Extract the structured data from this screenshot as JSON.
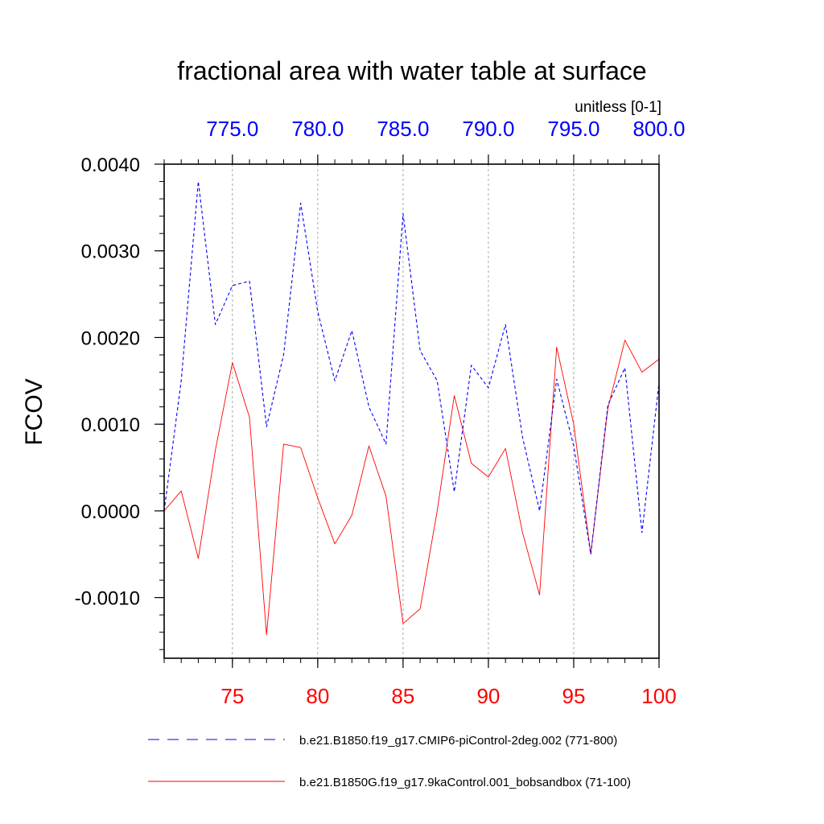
{
  "chart_data": {
    "type": "line",
    "title": "fractional area with water table at surface",
    "units_label": "unitless [0-1]",
    "ylabel": "FCOV",
    "ylim": [
      -0.0017,
      0.004
    ],
    "yticks": [
      -0.001,
      0.0,
      0.001,
      0.002,
      0.003,
      0.004
    ],
    "ytick_labels": [
      "-0.0010",
      "0.0000",
      "0.0010",
      "0.0020",
      "0.0030",
      "0.0040"
    ],
    "bottom_axis": {
      "xlim": [
        71,
        100
      ],
      "ticks": [
        75,
        80,
        85,
        90,
        95,
        100
      ],
      "tick_labels": [
        "75",
        "80",
        "85",
        "90",
        "95",
        "100"
      ],
      "color": "#ff0000"
    },
    "top_axis": {
      "xlim": [
        771,
        800
      ],
      "ticks": [
        775,
        780,
        785,
        790,
        795,
        800
      ],
      "tick_labels": [
        "775.0",
        "780.0",
        "785.0",
        "790.0",
        "795.0",
        "800.0"
      ],
      "color": "#0000ff"
    },
    "grid": "vertical dashed at major x ticks",
    "series": [
      {
        "name": "b.e21.B1850.f19_g17.CMIP6-piControl-2deg.002 (771-800)",
        "axis": "top",
        "color": "#0000ff",
        "style": "dashed",
        "x": [
          771,
          772,
          773,
          774,
          775,
          776,
          777,
          778,
          779,
          780,
          781,
          782,
          783,
          784,
          785,
          786,
          787,
          788,
          789,
          790,
          791,
          792,
          793,
          794,
          795,
          796,
          797,
          798,
          799,
          800
        ],
        "values": [
          0.0,
          0.0015,
          0.0038,
          0.00215,
          0.0026,
          0.00265,
          0.00097,
          0.0018,
          0.00355,
          0.0023,
          0.0015,
          0.00208,
          0.0012,
          0.00077,
          0.00343,
          0.00185,
          0.0015,
          0.00022,
          0.00168,
          0.00142,
          0.00215,
          0.00085,
          0.0,
          0.00152,
          0.00075,
          -0.0005,
          0.00122,
          0.00165,
          -0.00025,
          0.00148
        ]
      },
      {
        "name": "b.e21.B1850G.f19_g17.9kaControl.001_bobsandbox (71-100)",
        "axis": "bottom",
        "color": "#ff0000",
        "style": "solid",
        "x": [
          71,
          72,
          73,
          74,
          75,
          76,
          77,
          78,
          79,
          80,
          81,
          82,
          83,
          84,
          85,
          86,
          87,
          88,
          89,
          90,
          91,
          92,
          93,
          94,
          95,
          96,
          97,
          98,
          99,
          100
        ],
        "values": [
          0.0,
          0.00023,
          -0.00055,
          0.0007,
          0.00171,
          0.00108,
          -0.00143,
          0.00077,
          0.00073,
          0.00015,
          -0.00038,
          -5e-05,
          0.00075,
          0.00017,
          -0.0013,
          -0.00113,
          0.0,
          0.00133,
          0.00055,
          0.00039,
          0.00072,
          -0.00025,
          -0.00097,
          0.00189,
          0.001,
          -0.0005,
          0.00118,
          0.00197,
          0.0016,
          0.00175
        ]
      }
    ]
  }
}
